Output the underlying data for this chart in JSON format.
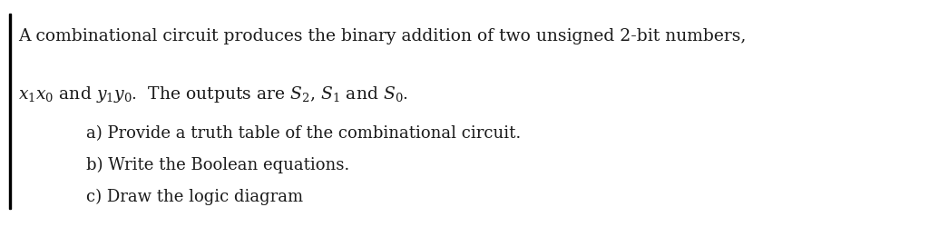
{
  "background_color": "#ffffff",
  "left_bar_color": "#000000",
  "text_color": "#1a1a1a",
  "line1": "A combinational circuit produces the binary addition of two unsigned 2-bit numbers,",
  "item_a": "a) Provide a truth table of the combinational circuit.",
  "item_b": "b) Write the Boolean equations.",
  "item_c": "c) Draw the logic diagram",
  "font_family": "DejaVu Serif",
  "font_size_main": 13.5,
  "font_size_sub": 13.0,
  "fig_width": 10.24,
  "fig_height": 2.51,
  "dpi": 100
}
